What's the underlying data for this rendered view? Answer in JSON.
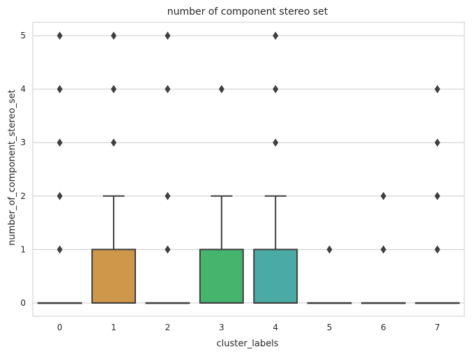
{
  "chart_data": {
    "type": "boxplot",
    "title": "number of component stereo set",
    "xlabel": "cluster_labels",
    "ylabel": "number_of_component_stereo_set",
    "categories": [
      "0",
      "1",
      "2",
      "3",
      "4",
      "5",
      "6",
      "7"
    ],
    "ylim": [
      -0.25,
      5.25
    ],
    "yticks": [
      0,
      1,
      2,
      3,
      4,
      5
    ],
    "grid": "horizontal",
    "series": [
      {
        "category": "0",
        "q1": 0,
        "median": 0,
        "q3": 0,
        "whisker_low": 0,
        "whisker_high": 0,
        "outliers": [
          1,
          2,
          3,
          4,
          5
        ],
        "color": "#6b8ec6"
      },
      {
        "category": "1",
        "q1": 0,
        "median": 0,
        "q3": 1,
        "whisker_low": 0,
        "whisker_high": 2,
        "outliers": [
          3,
          4,
          5
        ],
        "color": "#cf974a"
      },
      {
        "category": "2",
        "q1": 0,
        "median": 0,
        "q3": 0,
        "whisker_low": 0,
        "whisker_high": 0,
        "outliers": [
          1,
          2,
          4,
          5
        ],
        "color": "#6aa069"
      },
      {
        "category": "3",
        "q1": 0,
        "median": 0,
        "q3": 1,
        "whisker_low": 0,
        "whisker_high": 2,
        "outliers": [
          4
        ],
        "color": "#45b46c"
      },
      {
        "category": "4",
        "q1": 0,
        "median": 0,
        "q3": 1,
        "whisker_low": 0,
        "whisker_high": 2,
        "outliers": [
          3,
          4,
          5
        ],
        "color": "#4aaba6"
      },
      {
        "category": "5",
        "q1": 0,
        "median": 0,
        "q3": 0,
        "whisker_low": 0,
        "whisker_high": 0,
        "outliers": [
          1
        ],
        "color": "#5a9cc4"
      },
      {
        "category": "6",
        "q1": 0,
        "median": 0,
        "q3": 0,
        "whisker_low": 0,
        "whisker_high": 0,
        "outliers": [
          1,
          2
        ],
        "color": "#7b85c4"
      },
      {
        "category": "7",
        "q1": 0,
        "median": 0,
        "q3": 0,
        "whisker_low": 0,
        "whisker_high": 0,
        "outliers": [
          1,
          2,
          3,
          4
        ],
        "color": "#a77fc0"
      }
    ],
    "colors": {
      "grid": "#cccccc",
      "frame": "#cccccc",
      "box_line": "#3f3f3f",
      "text": "#262626"
    }
  }
}
